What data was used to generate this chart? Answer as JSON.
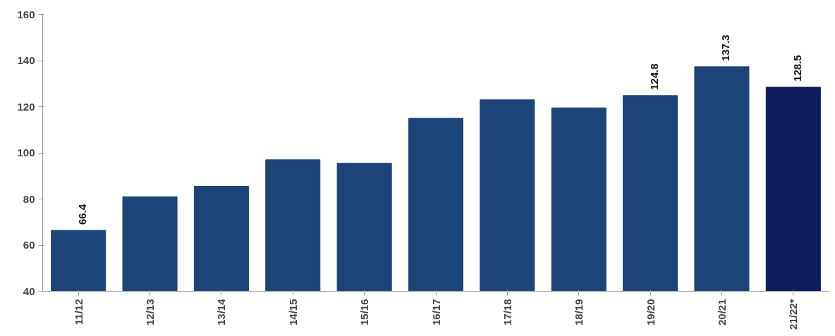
{
  "chart_data": {
    "type": "bar",
    "categories": [
      "11/12",
      "12/13",
      "13/14",
      "14/15",
      "15/16",
      "16/17",
      "17/18",
      "18/19",
      "19/20",
      "20/21",
      "21/22*"
    ],
    "values": [
      66.4,
      81,
      85.5,
      97,
      95.5,
      115,
      123,
      119.5,
      124.8,
      137.3,
      128.5
    ],
    "colors": [
      "#1b4479",
      "#1b4479",
      "#1b4479",
      "#1b4479",
      "#1b4479",
      "#1b4479",
      "#1b4479",
      "#1b4479",
      "#1b4479",
      "#1b4479",
      "#0c1c5c"
    ],
    "value_labels": [
      "66.4",
      null,
      null,
      null,
      null,
      null,
      null,
      null,
      "124.8",
      "137.3",
      "128.5"
    ],
    "ylim": [
      40,
      160
    ],
    "yticks": [
      40,
      60,
      80,
      100,
      120,
      140,
      160
    ],
    "grid": false
  }
}
